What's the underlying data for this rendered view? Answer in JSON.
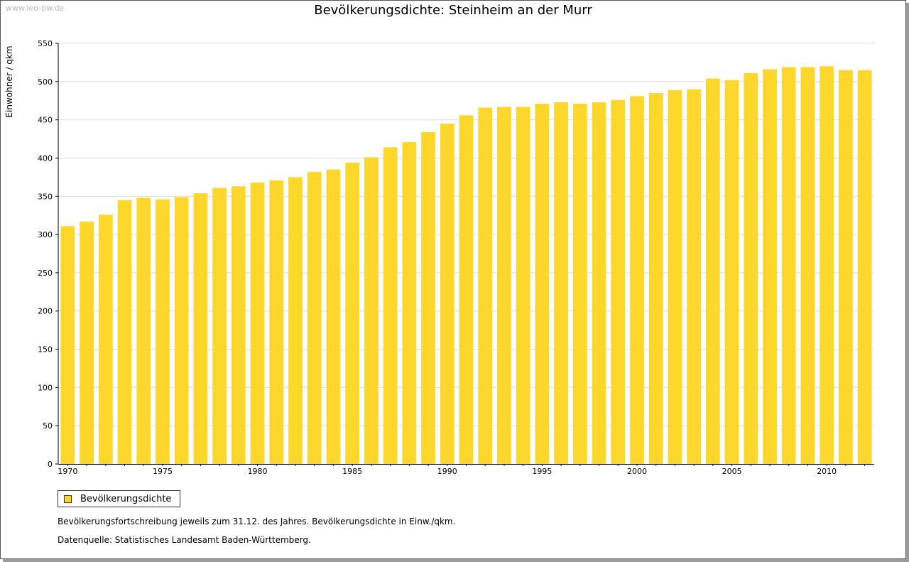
{
  "page": {
    "watermark": "www.leo-bw.de",
    "footnote": "Bevölkerungsfortschreibung jeweils zum 31.12. des Jahres. Bevölkerungsdichte in Einw./qkm.",
    "source": "Datenquelle: Statistisches Landesamt Baden-Württemberg."
  },
  "chart_data": {
    "type": "bar",
    "title": "Bevölkerungsdichte: Steinheim an der Murr",
    "xlabel": "",
    "ylabel": "Einwohner / qkm",
    "ylim": [
      0,
      550
    ],
    "yticks": [
      0,
      50,
      100,
      150,
      200,
      250,
      300,
      350,
      400,
      450,
      500,
      550
    ],
    "xtick_labels": [
      "1970",
      "1975",
      "1980",
      "1985",
      "1990",
      "1995",
      "2000",
      "2005",
      "2010"
    ],
    "grid": true,
    "legend_position": "bottom-left",
    "bar_color": "#FDD72C",
    "series": [
      {
        "name": "Bevölkerungsdichte",
        "categories": [
          "1970",
          "1971",
          "1972",
          "1973",
          "1974",
          "1975",
          "1976",
          "1977",
          "1978",
          "1979",
          "1980",
          "1981",
          "1982",
          "1983",
          "1984",
          "1985",
          "1986",
          "1987",
          "1988",
          "1989",
          "1990",
          "1991",
          "1992",
          "1993",
          "1994",
          "1995",
          "1996",
          "1997",
          "1998",
          "1999",
          "2000",
          "2001",
          "2002",
          "2003",
          "2004",
          "2005",
          "2006",
          "2007",
          "2008",
          "2009",
          "2010",
          "2011",
          "2012"
        ],
        "values": [
          311,
          317,
          326,
          345,
          348,
          346,
          349,
          354,
          361,
          363,
          368,
          371,
          375,
          382,
          385,
          394,
          401,
          414,
          421,
          434,
          445,
          456,
          466,
          467,
          467,
          471,
          473,
          471,
          473,
          476,
          481,
          485,
          489,
          490,
          504,
          502,
          511,
          516,
          519,
          519,
          520,
          515,
          515
        ]
      }
    ]
  }
}
